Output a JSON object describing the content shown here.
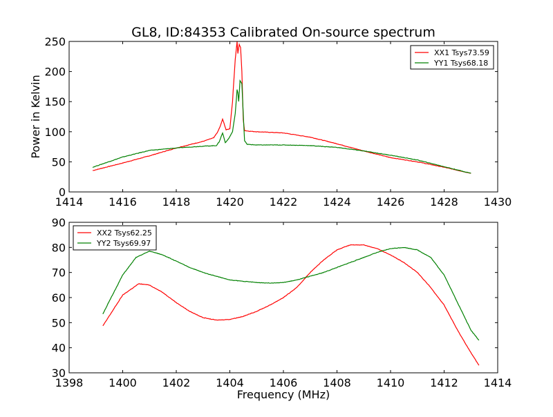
{
  "chart_data": [
    {
      "type": "line",
      "title": "GL8, ID:84353 Calibrated On-source spectrum",
      "xlabel": "",
      "ylabel": "Power in Kelvin",
      "xlim": [
        1414,
        1430
      ],
      "ylim": [
        0,
        250
      ],
      "xticks": [
        1414,
        1416,
        1418,
        1420,
        1422,
        1424,
        1426,
        1428,
        1430
      ],
      "yticks": [
        0,
        50,
        100,
        150,
        200,
        250
      ],
      "legend_position": "top-right",
      "series": [
        {
          "name": "XX1 Tsys73.59",
          "color": "#ff0000",
          "x": [
            1414.88,
            1416,
            1417,
            1418,
            1419,
            1419.4,
            1419.55,
            1419.65,
            1419.73,
            1419.86,
            1420.0,
            1420.1,
            1420.2,
            1420.27,
            1420.3,
            1420.35,
            1420.4,
            1420.45,
            1420.5,
            1420.55,
            1420.7,
            1421,
            1422,
            1423,
            1424,
            1425,
            1426,
            1427,
            1428,
            1429
          ],
          "y": [
            35.5,
            48,
            60,
            73,
            84,
            90,
            100,
            110,
            121,
            103,
            105,
            150,
            220,
            250,
            230,
            245,
            240,
            200,
            120,
            102,
            101,
            100,
            98,
            91,
            80,
            68,
            57,
            50,
            41,
            31
          ]
        },
        {
          "name": "YY1 Tsys68.18",
          "color": "#008000",
          "x": [
            1414.88,
            1416,
            1417,
            1418,
            1419,
            1419.5,
            1419.6,
            1419.73,
            1419.83,
            1419.95,
            1420.1,
            1420.2,
            1420.27,
            1420.3,
            1420.33,
            1420.38,
            1420.45,
            1420.5,
            1420.55,
            1420.65,
            1421,
            1422,
            1423,
            1424,
            1425,
            1426,
            1427,
            1428,
            1429
          ],
          "y": [
            41,
            58,
            69,
            73,
            76,
            77,
            83,
            98,
            82,
            88,
            100,
            130,
            170,
            165,
            150,
            185,
            180,
            130,
            85,
            79,
            78,
            78,
            77,
            74,
            68,
            61,
            53,
            42,
            31
          ]
        }
      ]
    },
    {
      "type": "line",
      "title": "",
      "xlabel": "Frequency (MHz)",
      "ylabel": "",
      "xlim": [
        1398,
        1414
      ],
      "ylim": [
        30,
        90
      ],
      "xticks": [
        1398,
        1400,
        1402,
        1404,
        1406,
        1408,
        1410,
        1412,
        1414
      ],
      "yticks": [
        30,
        40,
        50,
        60,
        70,
        80,
        90
      ],
      "legend_position": "top-left",
      "series": [
        {
          "name": "XX2 Tsys62.25",
          "color": "#ff0000",
          "x": [
            1399.26,
            1400,
            1400.6,
            1401,
            1401.5,
            1402,
            1402.5,
            1403,
            1403.5,
            1404,
            1404.5,
            1405,
            1405.5,
            1406,
            1406.5,
            1407,
            1407.5,
            1408,
            1408.5,
            1409,
            1409.5,
            1410,
            1410.5,
            1411,
            1411.5,
            1412,
            1412.5,
            1413,
            1413.3
          ],
          "y": [
            48.7,
            61,
            65.5,
            65,
            62,
            58,
            54.5,
            52,
            51,
            51.3,
            52.5,
            54.5,
            57,
            60,
            64,
            70,
            75,
            79,
            81,
            81,
            79.5,
            77,
            74,
            70,
            64,
            57,
            47,
            38,
            33
          ]
        },
        {
          "name": "YY2 Tsys69.97",
          "color": "#008000",
          "x": [
            1399.26,
            1400,
            1400.5,
            1401,
            1401.5,
            1402,
            1402.5,
            1403,
            1403.5,
            1404,
            1404.5,
            1405,
            1405.5,
            1406,
            1406.5,
            1407,
            1407.5,
            1408,
            1408.5,
            1409,
            1409.5,
            1410,
            1410.5,
            1411,
            1411.5,
            1412,
            1412.5,
            1413,
            1413.3
          ],
          "y": [
            53.5,
            69,
            76,
            78.5,
            77,
            74.5,
            72,
            70,
            68.5,
            67,
            66.5,
            66,
            65.8,
            66,
            67,
            68.5,
            70,
            72,
            74,
            76,
            78,
            79.5,
            80,
            79,
            76,
            69,
            58,
            47,
            43
          ]
        }
      ]
    }
  ]
}
